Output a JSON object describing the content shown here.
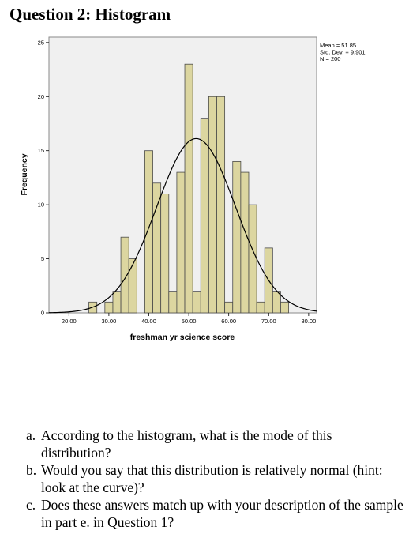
{
  "page": {
    "title": "Question 2: Histogram"
  },
  "chart_data": {
    "type": "bar",
    "title": "",
    "xlabel": "freshman yr science score",
    "ylabel": "Frequency",
    "xlim": [
      15,
      82
    ],
    "ylim": [
      0,
      25.5
    ],
    "xticks": [
      20,
      30,
      40,
      50,
      60,
      70,
      80
    ],
    "xtick_labels": [
      "20.00",
      "30.00",
      "40.00",
      "50.00",
      "60.00",
      "70.00",
      "80.00"
    ],
    "yticks": [
      0,
      5,
      10,
      15,
      20,
      25
    ],
    "ytick_labels": [
      "0",
      "5",
      "10",
      "15",
      "20",
      "25"
    ],
    "bin_width": 2,
    "bin_centers": [
      26,
      28,
      30,
      32,
      34,
      36,
      38,
      40,
      42,
      44,
      46,
      48,
      50,
      52,
      54,
      56,
      58,
      60,
      62,
      64,
      66,
      68,
      70,
      72,
      74
    ],
    "values": [
      1,
      0,
      1,
      2,
      7,
      5,
      0,
      15,
      12,
      11,
      2,
      13,
      23,
      2,
      18,
      20,
      20,
      1,
      14,
      13,
      10,
      1,
      6,
      2,
      1
    ],
    "normal_curve": {
      "mean": 51.85,
      "std": 9.901,
      "n": 200
    },
    "legend": {
      "position": "top-right",
      "lines": [
        "Mean = 51.85",
        "Std. Dev. = 9.901",
        "N = 200"
      ]
    },
    "colors": {
      "bar": "#dcd6a0",
      "bar_edge": "#4a4a4a",
      "plot_bg": "#f0f0f0",
      "curve": "#000000"
    },
    "grid": false
  },
  "questions": [
    {
      "label": "a.",
      "text": "According to the histogram, what is the mode of this distribution?"
    },
    {
      "label": "b.",
      "text": "Would you say that this distribution is relatively normal (hint: look at the curve)?"
    },
    {
      "label": "c.",
      "text": "Does these answers match up with your description of the sample in part e. in Question 1?"
    }
  ]
}
